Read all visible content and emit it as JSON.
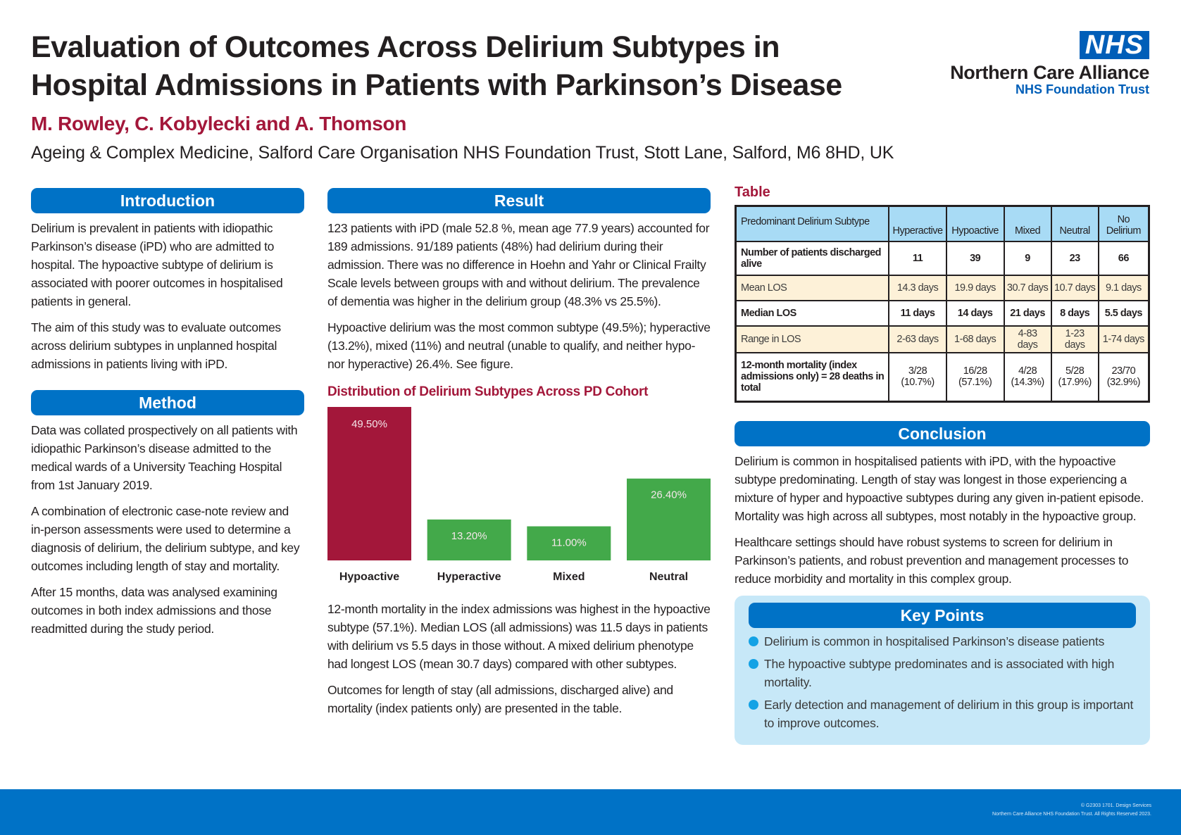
{
  "header": {
    "title_line1": "Evaluation of Outcomes Across Delirium Subtypes in",
    "title_line2": "Hospital Admissions in Patients with Parkinson’s Disease",
    "authors": "M. Rowley, C. Kobylecki and A. Thomson",
    "affiliation": "Ageing & Complex Medicine, Salford Care Organisation NHS Foundation Trust, Stott Lane, Salford, M6 8HD, UK"
  },
  "logo": {
    "mark": "NHS",
    "name": "Northern Care Alliance",
    "trust": "NHS Foundation Trust"
  },
  "introduction": {
    "heading": "Introduction",
    "paragraphs": [
      "Delirium is prevalent in patients with idiopathic Parkinson’s disease (iPD) who are admitted to hospital.  The hypoactive subtype of delirium is associated with poorer outcomes in hospitalised patients in general.",
      "The aim of this study was to evaluate outcomes across delirium subtypes in unplanned hospital admissions in patients living with iPD."
    ]
  },
  "method": {
    "heading": "Method",
    "paragraphs": [
      "Data was collated prospectively on all patients with idiopathic Parkinson’s disease admitted to the medical wards of a University Teaching Hospital from 1st January 2019.",
      "A combination of electronic case-note review and in-person assessments were used to determine a diagnosis of delirium, the delirium subtype, and key outcomes including length of stay and mortality.",
      "After 15 months, data was analysed examining outcomes in both index admissions and those readmitted during the study period."
    ]
  },
  "result": {
    "heading": "Result",
    "paragraphs": [
      "123 patients with iPD (male 52.8 %, mean age 77.9 years) accounted for 189 admissions. 91/189 patients (48%) had delirium during their admission.  There was no difference in Hoehn and Yahr or Clinical Frailty Scale levels between groups with and without delirium. The prevalence of dementia was higher in the delirium group (48.3% vs 25.5%).",
      "Hypoactive delirium was the most common subtype (49.5%); hyperactive (13.2%), mixed (11%) and neutral (unable to qualify, and neither hypo- nor hyperactive) 26.4%.  See figure."
    ],
    "paragraphs_after": [
      "12-month mortality in the index admissions was highest in the hypoactive subtype (57.1%).  Median LOS (all admissions) was 11.5 days in patients with delirium vs 5.5 days in those without. A mixed delirium phenotype had longest LOS (mean 30.7 days) compared with other subtypes.",
      "Outcomes for length of stay (all admissions, discharged alive) and mortality (index patients only) are presented in the table."
    ]
  },
  "chart_data": {
    "type": "bar",
    "title": "Distribution of Delirium Subtypes Across PD Cohort",
    "categories": [
      "Hypoactive",
      "Hyperactive",
      "Mixed",
      "Neutral"
    ],
    "values": [
      49.5,
      13.2,
      11.0,
      26.4
    ],
    "data_labels": [
      "49.50%",
      "13.20%",
      "11.00%",
      "26.40%"
    ],
    "colors": [
      "#a3173a",
      "#43a94a",
      "#43a94a",
      "#43a94a"
    ],
    "xlabel": "",
    "ylabel": "",
    "ylim": [
      0,
      49.5
    ],
    "grid": false,
    "legend": "none"
  },
  "table": {
    "title": "Table",
    "header": [
      "Predominant Delirium Subtype",
      "Hyperactive",
      "Hypoactive",
      "Mixed",
      "Neutral",
      "No Delirium"
    ],
    "rows": [
      {
        "label": "Number of patients discharged alive",
        "cells": [
          "11",
          "39",
          "9",
          "23",
          "66"
        ]
      },
      {
        "label": "Mean LOS",
        "cells": [
          "14.3 days",
          "19.9 days",
          "30.7 days",
          "10.7 days",
          "9.1 days"
        ]
      },
      {
        "label": "Median LOS",
        "cells": [
          "11 days",
          "14 days",
          "21 days",
          "8 days",
          "5.5 days"
        ]
      },
      {
        "label": "Range in LOS",
        "cells": [
          "2-63 days",
          "1-68 days",
          "4-83 days",
          "1-23 days",
          "1-74 days"
        ]
      },
      {
        "label": "12-month mortality (index admissions only) = 28 deaths in total",
        "cells": [
          "3/28 (10.7%)",
          "16/28 (57.1%)",
          "4/28 (14.3%)",
          "5/28 (17.9%)",
          "23/70 (32.9%)"
        ]
      }
    ]
  },
  "conclusion": {
    "heading": "Conclusion",
    "paragraphs": [
      "Delirium is common in hospitalised patients with iPD, with the hypoactive subtype predominating.  Length of stay was longest in those experiencing a mixture of  hyper and hypoactive subtypes during any given in-patient episode.  Mortality was high across all subtypes, most notably in the hypoactive group.",
      "Healthcare settings should have robust systems to screen for delirium in Parkinson’s patients, and robust prevention and management processes to reduce morbidity and mortality in this complex group."
    ]
  },
  "key_points": {
    "heading": "Key Points",
    "items": [
      "Delirium is common in hospitalised Parkinson’s disease patients",
      "The hypoactive subtype predominates and is associated with high mortality.",
      "Early detection and management of delirium in this group is important to improve outcomes."
    ]
  },
  "footer": {
    "line1": "© G2303 1701.  Design Services",
    "line2": "Northern Care Alliance NHS Foundation Trust.  All Rights Reserved 2023."
  },
  "colors": {
    "nhs_blue": "#005eb8",
    "section_blue": "#0072c6",
    "accent_red": "#a3173a",
    "bar_green": "#43a94a",
    "table_header": "#a8dbf5",
    "table_cream": "#fdf1d8",
    "keypoints_bg": "#c7e8f8"
  }
}
